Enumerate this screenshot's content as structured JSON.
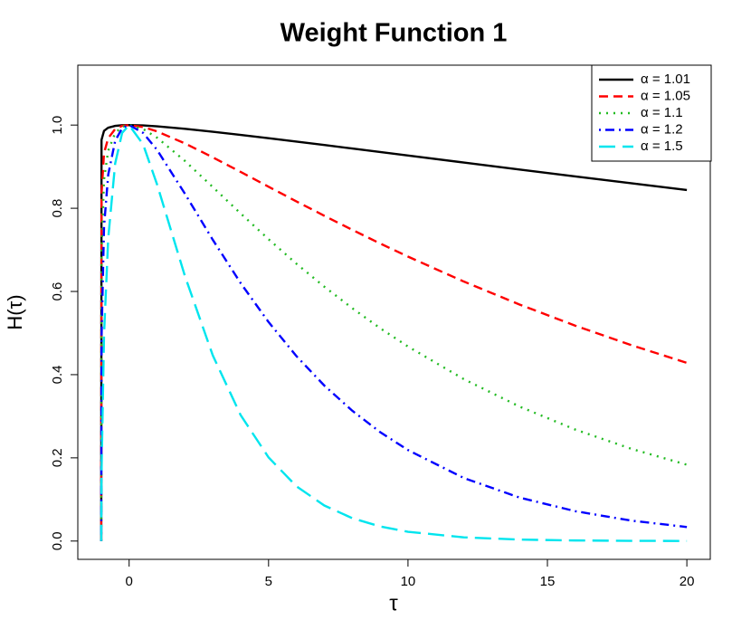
{
  "chart_data": {
    "type": "line",
    "title": "Weight Function 1",
    "x_label": "τ",
    "y_label": "H(τ)",
    "x": [
      -1,
      -0.99,
      -0.9,
      -0.75,
      -0.5,
      -0.25,
      0,
      0.5,
      1,
      2,
      3,
      4,
      5,
      6,
      7,
      8,
      9,
      10,
      12,
      14,
      16,
      18,
      20
    ],
    "series": [
      {
        "name": "α = 1.01",
        "color": "#000000",
        "line_style": "solid",
        "values": [
          0,
          0.9645,
          0.9861,
          0.9937,
          0.9981,
          0.9996,
          1,
          0.9991,
          0.9969,
          0.991,
          0.984,
          0.9764,
          0.9684,
          0.9603,
          0.952,
          0.9437,
          0.9352,
          0.9268,
          0.91,
          0.8932,
          0.8766,
          0.8602,
          0.844
        ]
      },
      {
        "name": "α = 1.05",
        "color": "#ff0000",
        "line_style": "dashed",
        "values": [
          0,
          0.8346,
          0.9323,
          0.9687,
          0.9904,
          0.9981,
          1,
          0.9953,
          0.9848,
          0.9559,
          0.9225,
          0.8873,
          0.8518,
          0.8165,
          0.7819,
          0.7482,
          0.7154,
          0.6838,
          0.6239,
          0.5686,
          0.5177,
          0.4711,
          0.4284
        ]
      },
      {
        "name": "α = 1.1",
        "color": "#22bb22",
        "line_style": "dotted",
        "values": [
          0,
          0.6966,
          0.8691,
          0.9384,
          0.9809,
          0.9962,
          1,
          0.9906,
          0.9698,
          0.9138,
          0.851,
          0.7874,
          0.7256,
          0.6667,
          0.6114,
          0.5598,
          0.5118,
          0.4676,
          0.3893,
          0.3233,
          0.268,
          0.2219,
          0.1835
        ]
      },
      {
        "name": "α = 1.2",
        "color": "#0000ff",
        "line_style": "dotdash",
        "values": [
          0,
          0.4853,
          0.7553,
          0.8806,
          0.9622,
          0.9924,
          1,
          0.9813,
          0.9405,
          0.835,
          0.7242,
          0.62,
          0.5265,
          0.4445,
          0.3738,
          0.3134,
          0.2619,
          0.2187,
          0.1516,
          0.1045,
          0.0718,
          0.0492,
          0.0337
        ]
      },
      {
        "name": "α = 1.5",
        "color": "#00e5ee",
        "line_style": "longdash",
        "values": [
          0,
          0.1641,
          0.4958,
          0.7276,
          0.908,
          0.9813,
          1,
          0.9538,
          0.8577,
          0.6372,
          0.4463,
          0.3026,
          0.2011,
          0.1317,
          0.0854,
          0.055,
          0.0351,
          0.0223,
          0.0089,
          0.0035,
          0.0014,
          0.0005,
          0.0002
        ]
      }
    ],
    "xlim": [
      -1.84,
      20.84
    ],
    "xticks": [
      0,
      5,
      10,
      15,
      20
    ],
    "ylim": [
      -0.044,
      1.144
    ],
    "yticks": [
      {
        "value": 0,
        "label": "0.0"
      },
      0.2,
      0.4,
      0.6,
      0.8,
      {
        "value": 1,
        "label": "1.0"
      }
    ],
    "legend_position": "top-right",
    "grid": false
  }
}
